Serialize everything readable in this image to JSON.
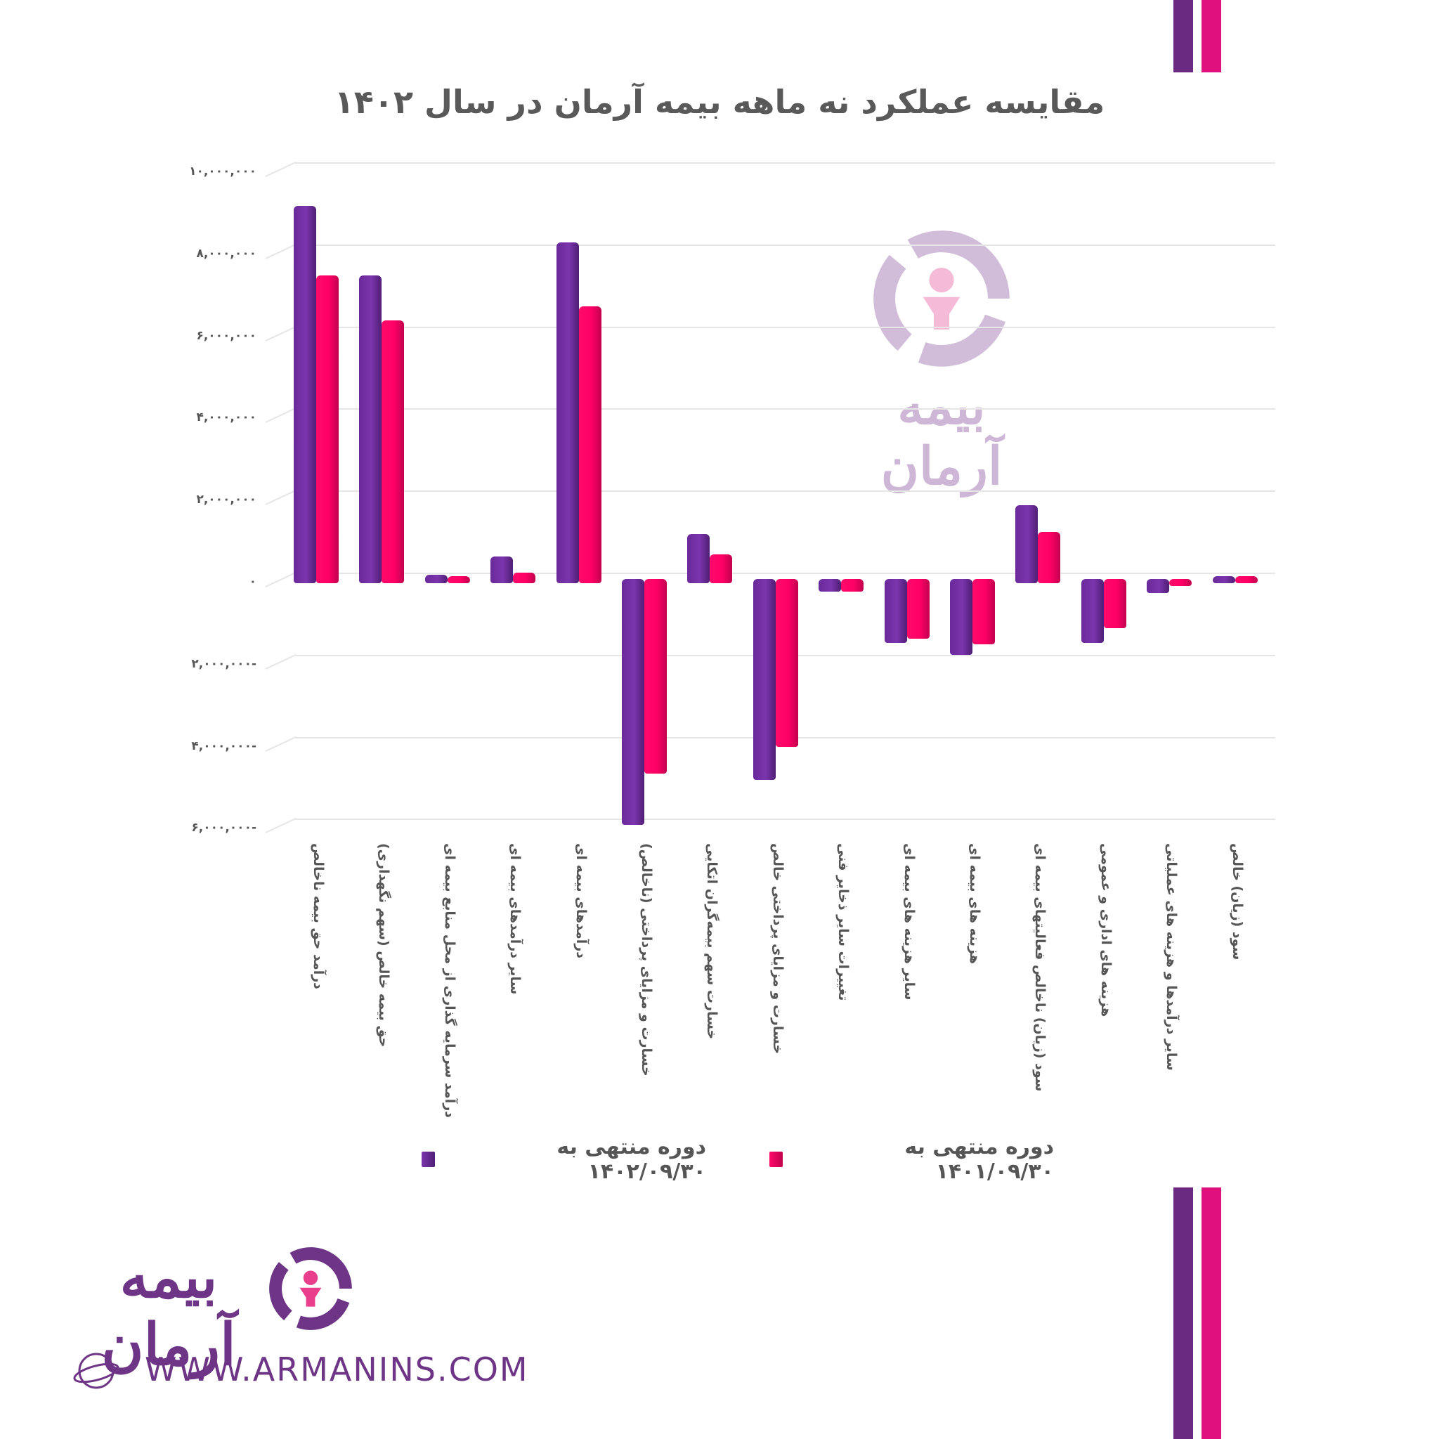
{
  "title": "مقایسه عملکرد نه ماهه بیمه آرمان در سال ۱۴۰۲",
  "colors": {
    "series_1402": "#6f2da8",
    "series_1401": "#ff0066",
    "stripe_purple": "#6b2a82",
    "stripe_pink": "#e0107f",
    "brand_purple": "#6e3587",
    "text_gray": "#555555"
  },
  "y_axis": {
    "ticks": [
      "۱۰,۰۰۰,۰۰۰",
      "۸,۰۰۰,۰۰۰",
      "۶,۰۰۰,۰۰۰",
      "۴,۰۰۰,۰۰۰",
      "۲,۰۰۰,۰۰۰",
      "۰",
      "۲,۰۰۰,۰۰۰-",
      "۴,۰۰۰,۰۰۰-",
      "۶,۰۰۰,۰۰۰-"
    ]
  },
  "legend": {
    "items": [
      {
        "label": "دوره منتهی به ۱۴۰۱/۰۹/۳۰",
        "color": "#ff0066"
      },
      {
        "label": "دوره منتهی به ۱۴۰۲/۰۹/۳۰",
        "color": "#6f2da8"
      }
    ]
  },
  "watermark": {
    "brand_name": "بیمه آرمان"
  },
  "footer": {
    "brand_name": "بیمه آرمان",
    "website": "WWW.ARMANINS.COM"
  },
  "chart_data": {
    "type": "bar",
    "title": "مقایسه عملکرد نه ماهه بیمه آرمان در سال ۱۴۰۲",
    "xlabel": "",
    "ylabel": "",
    "ylim": [
      -6000000,
      10000000
    ],
    "grid": true,
    "legend_position": "bottom",
    "categories": [
      "درآمد حق بیمه ناخالص",
      "حق بیمه خالص (سهم نگهداری)",
      "درآمد سرمایه گذاری از محل منابع بیمه ای",
      "سایر درآمدهای بیمه ای",
      "درآمدهای بیمه ای",
      "خسارت و مزایای پرداختی (ناخالص)",
      "خسارت سهم بیمه‌گران اتکایی",
      "خسارت و مزایای پرداختی خالص",
      "تغییرات سایر ذخایر فنی",
      "سایر هزینه های بیمه ای",
      "هزینه های بیمه ای",
      "سود (زیان) ناخالص فعالیتهای بیمه ای",
      "هزینه های اداری و عمومی",
      "سایر درآمدها و هزینه های عملیاتی",
      "سود (زیان) خالص"
    ],
    "series": [
      {
        "name": "دوره منتهی به ۱۴۰۲/۰۹/۳۰",
        "color": "#6f2da8",
        "values": [
          9200000,
          7500000,
          200000,
          650000,
          8300000,
          -6000000,
          1200000,
          -4900000,
          -300000,
          -1550000,
          -1850000,
          1900000,
          -1550000,
          -350000,
          100000
        ]
      },
      {
        "name": "دوره منتهی به ۱۴۰۱/۰۹/۳۰",
        "color": "#ff0066",
        "values": [
          7500000,
          6400000,
          150000,
          250000,
          6750000,
          -4750000,
          700000,
          -4100000,
          -300000,
          -1450000,
          -1600000,
          1250000,
          -1200000,
          -50000,
          100000
        ]
      }
    ]
  }
}
